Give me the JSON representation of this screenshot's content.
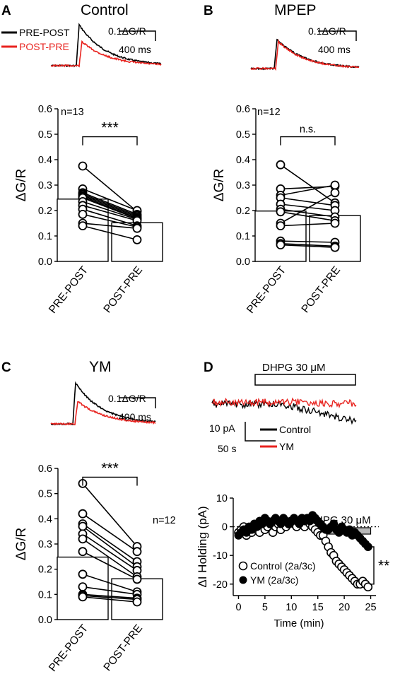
{
  "panels": {
    "A": {
      "letter": "A",
      "title": "Control"
    },
    "B": {
      "letter": "B",
      "title": "MPEP"
    },
    "C": {
      "letter": "C",
      "title": "YM"
    },
    "D": {
      "letter": "D"
    }
  },
  "trace_legend": {
    "pre_post": "PRE-POST",
    "post_pre": "POST-PRE"
  },
  "scale_bar": {
    "amplitude": "0.1ΔG/R",
    "time": "400 ms"
  },
  "trace_colors": {
    "pre_post": "#000000",
    "post_pre": "#e8231f"
  },
  "d_traces": {
    "drug_label": "DHPG 30 μM",
    "scale_current": "10 pA",
    "scale_time": "50 s",
    "legend": [
      {
        "name": "Control",
        "color": "#000000"
      },
      {
        "name": "YM",
        "color": "#e8231f"
      }
    ]
  },
  "chart_data": [
    {
      "id": "A",
      "type": "bar",
      "categories": [
        "PRE-POST",
        "POST-PRE"
      ],
      "ylabel": "ΔG/R",
      "ylim": [
        0,
        0.6
      ],
      "yticks": [
        "0.0",
        "0.1",
        "0.2",
        "0.3",
        "0.4",
        "0.5",
        "0.6"
      ],
      "n_label": "n=13",
      "significance": "***",
      "bar_means": [
        0.245,
        0.152
      ],
      "pairs": [
        [
          0.375,
          0.196
        ],
        [
          0.285,
          0.2
        ],
        [
          0.27,
          0.185
        ],
        [
          0.265,
          0.18
        ],
        [
          0.26,
          0.175
        ],
        [
          0.255,
          0.17
        ],
        [
          0.25,
          0.168
        ],
        [
          0.235,
          0.165
        ],
        [
          0.22,
          0.16
        ],
        [
          0.205,
          0.14
        ],
        [
          0.185,
          0.135
        ],
        [
          0.15,
          0.13
        ],
        [
          0.14,
          0.085
        ]
      ]
    },
    {
      "id": "B",
      "type": "bar",
      "categories": [
        "PRE-POST",
        "POST-PRE"
      ],
      "ylabel": "ΔG/R",
      "ylim": [
        0,
        0.6
      ],
      "yticks": [
        "0.0",
        "0.1",
        "0.2",
        "0.3",
        "0.4",
        "0.5",
        "0.6"
      ],
      "n_label": "n=12",
      "significance": "n.s.",
      "bar_means": [
        0.198,
        0.18
      ],
      "pairs": [
        [
          0.38,
          0.23
        ],
        [
          0.285,
          0.295
        ],
        [
          0.26,
          0.3
        ],
        [
          0.25,
          0.22
        ],
        [
          0.225,
          0.2
        ],
        [
          0.205,
          0.175
        ],
        [
          0.195,
          0.16
        ],
        [
          0.15,
          0.27
        ],
        [
          0.14,
          0.15
        ],
        [
          0.08,
          0.075
        ],
        [
          0.07,
          0.06
        ],
        [
          0.065,
          0.055
        ]
      ]
    },
    {
      "id": "C",
      "type": "bar",
      "categories": [
        "PRE-POST",
        "POST-PRE"
      ],
      "ylabel": "ΔG/R",
      "ylim": [
        0,
        0.6
      ],
      "yticks": [
        "0.0",
        "0.1",
        "0.2",
        "0.3",
        "0.4",
        "0.5",
        "0.6"
      ],
      "n_label": "n=12",
      "significance": "***",
      "bar_means": [
        0.248,
        0.162
      ],
      "pairs": [
        [
          0.54,
          0.29
        ],
        [
          0.42,
          0.27
        ],
        [
          0.38,
          0.23
        ],
        [
          0.37,
          0.21
        ],
        [
          0.34,
          0.195
        ],
        [
          0.32,
          0.17
        ],
        [
          0.27,
          0.16
        ],
        [
          0.18,
          0.11
        ],
        [
          0.13,
          0.1
        ],
        [
          0.1,
          0.085
        ],
        [
          0.095,
          0.08
        ],
        [
          0.09,
          0.07
        ]
      ]
    },
    {
      "id": "D",
      "type": "scatter",
      "xlabel": "Time (min)",
      "ylabel": "ΔI Holding (pA)",
      "xlim": [
        -1,
        26
      ],
      "ylim": [
        -24,
        10
      ],
      "xticks": [
        "0",
        "5",
        "10",
        "15",
        "20",
        "25"
      ],
      "yticks": [
        "10",
        "0",
        "-10",
        "-20"
      ],
      "drug_bar_label": "DHPG 30 μM",
      "drug_bar_range": [
        16,
        25
      ],
      "significance": "**",
      "series": [
        {
          "name": "Control (2a/3c)",
          "marker": "open",
          "x": [
            0,
            0.5,
            1,
            1.5,
            2,
            2.5,
            3,
            3.5,
            4,
            4.5,
            5,
            5.5,
            6,
            6.5,
            7,
            7.5,
            8,
            8.5,
            9,
            9.5,
            10,
            10.5,
            11,
            11.5,
            12,
            12.5,
            13,
            13.5,
            14,
            14.5,
            15,
            15.5,
            16,
            16.5,
            17,
            17.5,
            18,
            18.5,
            19,
            19.5,
            20,
            20.5,
            21,
            21.5,
            22,
            22.5,
            23,
            23.5,
            24,
            24.5
          ],
          "y": [
            -2,
            -1,
            0,
            -3,
            -1,
            -2,
            0,
            -1,
            -2,
            1,
            -1,
            0,
            1,
            -2,
            0,
            1,
            -1,
            2,
            0,
            1,
            2,
            1,
            0,
            2,
            1,
            0,
            2,
            1,
            0,
            -1,
            -2,
            -3,
            -3,
            -5,
            -7,
            -9,
            -10,
            -12,
            -13,
            -14,
            -15,
            -16,
            -17,
            -18,
            -19,
            -20,
            -20,
            -19,
            -20,
            -21
          ]
        },
        {
          "name": "YM (2a/3c)",
          "marker": "filled",
          "x": [
            0,
            0.5,
            1,
            1.5,
            2,
            2.5,
            3,
            3.5,
            4,
            4.5,
            5,
            5.5,
            6,
            6.5,
            7,
            7.5,
            8,
            8.5,
            9,
            9.5,
            10,
            10.5,
            11,
            11.5,
            12,
            12.5,
            13,
            13.5,
            14,
            14.5,
            15,
            15.5,
            16,
            16.5,
            17,
            17.5,
            18,
            18.5,
            19,
            19.5,
            20,
            20.5,
            21,
            21.5,
            22,
            22.5,
            23,
            23.5,
            24,
            24.5
          ],
          "y": [
            -3,
            -2,
            -1,
            -2,
            0,
            -1,
            1,
            0,
            2,
            1,
            3,
            2,
            1,
            2,
            3,
            2,
            1,
            3,
            2,
            1,
            2,
            3,
            2,
            1,
            3,
            2,
            3,
            2,
            4,
            3,
            2,
            1,
            0,
            -1,
            -1,
            0,
            1,
            -1,
            -2,
            0,
            -1,
            -2,
            -1,
            -3,
            -2,
            -3,
            -4,
            -5,
            -6,
            -7
          ]
        }
      ]
    }
  ]
}
